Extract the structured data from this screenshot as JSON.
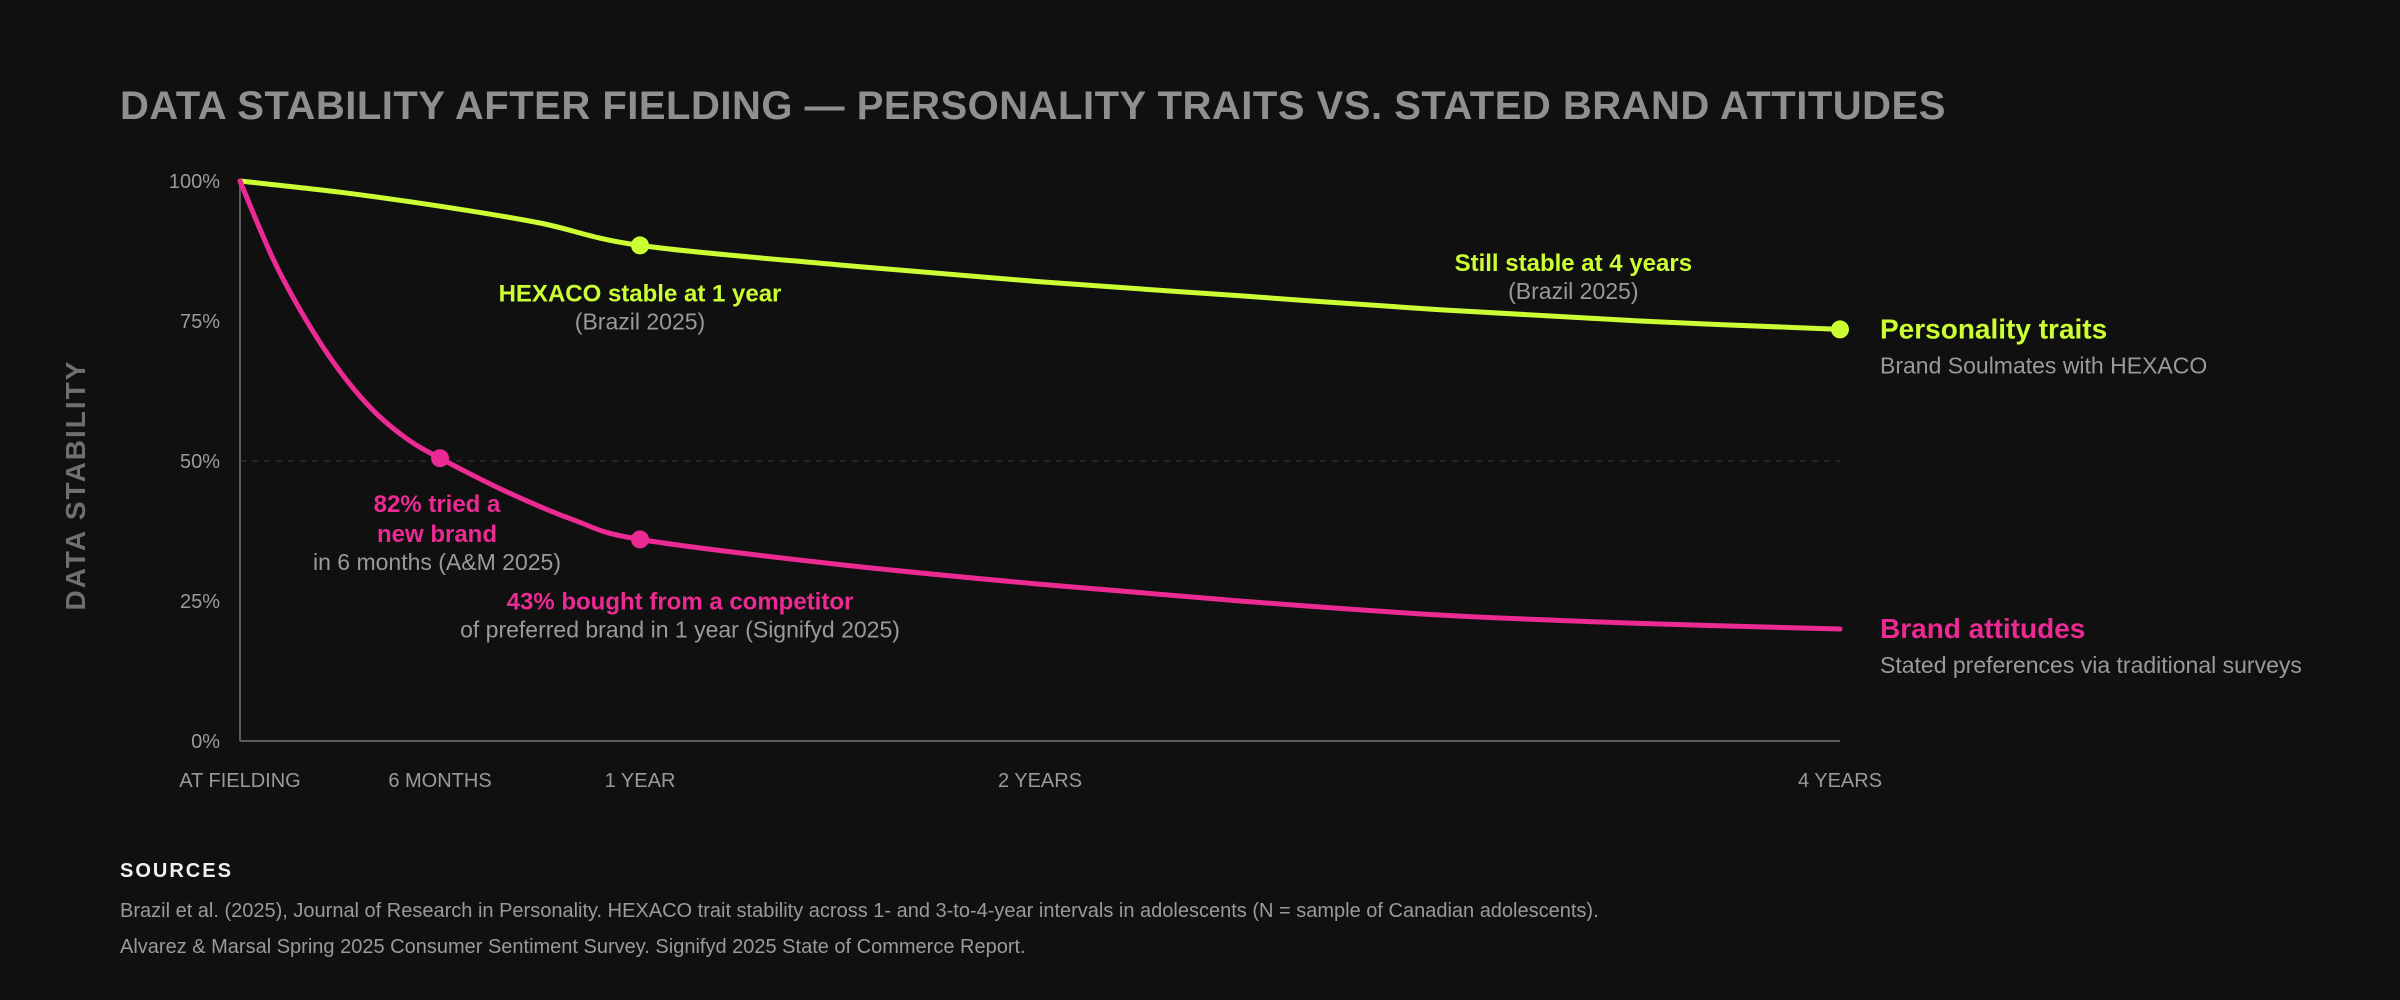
{
  "title": "DATA STABILITY AFTER FIELDING — PERSONALITY TRAITS VS. STATED BRAND ATTITUDES",
  "colors": {
    "traits": "#ccff33",
    "brand": "#ec2a93",
    "background": "#101010"
  },
  "chart_data": {
    "type": "line",
    "ylabel": "DATA STABILITY",
    "xlabel": "",
    "ylim": [
      0,
      100
    ],
    "yticks": [
      {
        "value": 100,
        "label": "100%"
      },
      {
        "value": 75,
        "label": "75%"
      },
      {
        "value": 50,
        "label": "50%"
      },
      {
        "value": 25,
        "label": "25%"
      },
      {
        "value": 0,
        "label": "0%"
      }
    ],
    "xlim_months": [
      0,
      48
    ],
    "xticks": [
      {
        "month": 0,
        "label": "AT FIELDING"
      },
      {
        "month": 6,
        "label": "6 MONTHS"
      },
      {
        "month": 12,
        "label": "1 YEAR"
      },
      {
        "month": 24,
        "label": "2 YEARS"
      },
      {
        "month": 48,
        "label": "4 YEARS"
      }
    ],
    "series": [
      {
        "key": "traits",
        "name": "Personality traits",
        "subtitle": "Brand Soulmates with HEXACO",
        "points": [
          {
            "month": 0,
            "value": 100
          },
          {
            "month": 3,
            "value": 98
          },
          {
            "month": 6,
            "value": 95.5
          },
          {
            "month": 9,
            "value": 92.5
          },
          {
            "month": 12,
            "value": 88.5
          },
          {
            "month": 18,
            "value": 85
          },
          {
            "month": 24,
            "value": 82
          },
          {
            "month": 30,
            "value": 79.5
          },
          {
            "month": 36,
            "value": 77
          },
          {
            "month": 42,
            "value": 75
          },
          {
            "month": 48,
            "value": 73.5
          }
        ],
        "markers": [
          {
            "month": 12,
            "value": 88.5
          },
          {
            "month": 48,
            "value": 73.5
          }
        ]
      },
      {
        "key": "brand",
        "name": "Brand attitudes",
        "subtitle": "Stated preferences via traditional surveys",
        "points": [
          {
            "month": 0,
            "value": 100
          },
          {
            "month": 1,
            "value": 86
          },
          {
            "month": 2,
            "value": 75
          },
          {
            "month": 3,
            "value": 66
          },
          {
            "month": 4,
            "value": 59
          },
          {
            "month": 5,
            "value": 54
          },
          {
            "month": 6,
            "value": 50.5
          },
          {
            "month": 8,
            "value": 44.5
          },
          {
            "month": 10,
            "value": 39.5
          },
          {
            "month": 12,
            "value": 36
          },
          {
            "month": 18,
            "value": 31.5
          },
          {
            "month": 24,
            "value": 28
          },
          {
            "month": 30,
            "value": 25
          },
          {
            "month": 36,
            "value": 22.5
          },
          {
            "month": 42,
            "value": 21
          },
          {
            "month": 48,
            "value": 20
          }
        ],
        "markers": [
          {
            "month": 6,
            "value": 50.5
          },
          {
            "month": 12,
            "value": 36
          }
        ]
      }
    ],
    "reference_line": {
      "value": 50,
      "style": "dashed"
    },
    "annotations": [
      {
        "series": "traits",
        "month": 12,
        "value": 88.5,
        "lines": [
          "HEXACO stable at 1 year"
        ],
        "sub": "(Brazil 2025)"
      },
      {
        "series": "traits",
        "month": 40,
        "value": 80,
        "lines": [
          "Still stable at 4 years"
        ],
        "sub": "(Brazil 2025)"
      },
      {
        "series": "brand",
        "month": 6,
        "value": 50.5,
        "lines": [
          "82% tried a",
          "new brand"
        ],
        "sub": "in 6 months (A&M 2025)"
      },
      {
        "series": "brand",
        "month": 12,
        "value": 36,
        "lines": [
          "43% bought from a competitor"
        ],
        "sub": "of preferred brand in 1 year (Signifyd 2025)"
      }
    ]
  },
  "sources": {
    "heading": "SOURCES",
    "lines": [
      "Brazil et al. (2025), Journal of Research in Personality. HEXACO trait stability across 1- and 3-to-4-year intervals in adolescents (N = sample of Canadian adolescents).",
      "Alvarez & Marsal Spring 2025 Consumer Sentiment Survey. Signifyd 2025 State of Commerce Report."
    ]
  }
}
